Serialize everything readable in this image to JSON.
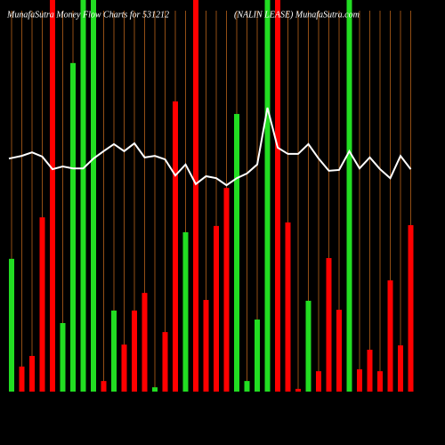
{
  "chart_data": {
    "type": "bar-line",
    "title": "MunafaSutra  Money Flow Charts for 531212",
    "subtitle": "(NALIN LEASE) MunafaSutra.com",
    "categories": [
      null,
      null,
      null,
      null,
      null,
      null,
      null,
      null,
      null,
      null,
      null,
      null,
      null,
      null,
      null,
      null,
      null,
      null,
      null,
      null,
      null,
      null,
      null,
      null,
      null,
      null,
      null,
      null,
      null,
      null,
      null,
      null,
      null,
      null,
      null,
      null,
      null,
      null,
      null,
      null
    ],
    "bars": {
      "values": [
        33.9,
        6.4,
        9.1,
        44.5,
        100,
        17.5,
        83.9,
        100,
        100,
        2.7,
        20.7,
        12.0,
        20.7,
        25.2,
        1.1,
        15.2,
        74.1,
        40.7,
        100,
        23.4,
        42.3,
        52.0,
        70.9,
        2.7,
        18.4,
        100,
        100,
        43.2,
        0.7,
        23.2,
        5.2,
        34.1,
        20.9,
        100,
        5.7,
        10.7,
        5.2,
        28.4,
        11.8,
        42.5
      ],
      "colors": [
        "#22dd22",
        "#ff0000",
        "#ff0000",
        "#ff0000",
        "#ff0000",
        "#22dd22",
        "#22dd22",
        "#22dd22",
        "#22dd22",
        "#ff0000",
        "#22dd22",
        "#ff0000",
        "#ff0000",
        "#ff0000",
        "#22dd22",
        "#ff0000",
        "#ff0000",
        "#22dd22",
        "#ff0000",
        "#ff0000",
        "#ff0000",
        "#ff0000",
        "#22dd22",
        "#22dd22",
        "#22dd22",
        "#22dd22",
        "#ff0000",
        "#ff0000",
        "#ff0000",
        "#22dd22",
        "#ff0000",
        "#ff0000",
        "#ff0000",
        "#22dd22",
        "#ff0000",
        "#ff0000",
        "#ff0000",
        "#ff0000",
        "#ff0000",
        "#ff0000"
      ]
    },
    "line": {
      "color": "#ffffff",
      "values": [
        59.5,
        60.2,
        61.1,
        60.0,
        56.8,
        57.5,
        57.0,
        57.0,
        59.5,
        61.4,
        63.2,
        61.4,
        63.4,
        59.8,
        60.2,
        59.3,
        55.2,
        58.0,
        53.0,
        55.0,
        54.5,
        52.7,
        54.5,
        55.7,
        58.0,
        72.5,
        62.3,
        60.7,
        60.7,
        63.2,
        59.5,
        56.4,
        56.6,
        61.4,
        57.0,
        59.8,
        56.8,
        54.5,
        60.2,
        56.8
      ]
    },
    "ylim": [
      0,
      100
    ],
    "grid": true,
    "grid_color": "#b8621b"
  }
}
